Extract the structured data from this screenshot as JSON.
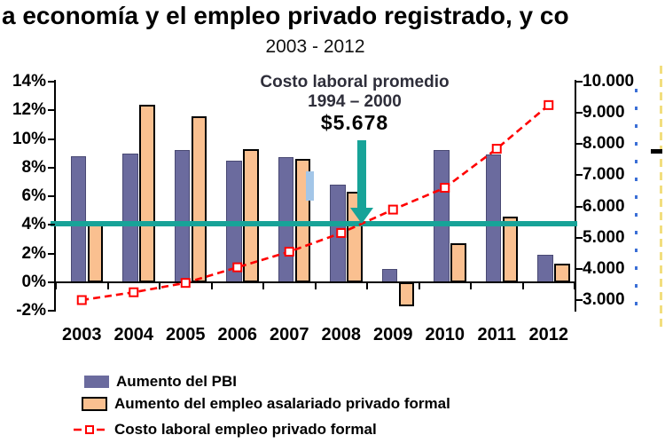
{
  "title": "a economía y el empleo privado registrado, y co",
  "subtitle": "2003 - 2012",
  "annotation": {
    "line1": "Costo laboral promedio",
    "line2": "1994 – 2000",
    "value": "$5.678"
  },
  "colors": {
    "pbi_bar": "#6B6B9E",
    "empleo_bar": "#FAC090",
    "bar_border": "#000000",
    "cost_line": "#FF0000",
    "reference_line": "#17A398",
    "ghost_bar": "#A3C6E8",
    "axis": "#000000",
    "artifact_blue": "#3B6FD6",
    "artifact_yellow": "#F2DE7E"
  },
  "chart_data": {
    "type": "combo-bar-line",
    "title": "a economía y el empleo privado registrado, y co",
    "subtitle": "2003 - 2012",
    "categories": [
      "2003",
      "2004",
      "2005",
      "2006",
      "2007",
      "2008",
      "2009",
      "2010",
      "2011",
      "2012"
    ],
    "series": [
      {
        "name": "Aumento del PBI",
        "type": "bar",
        "axis": "left",
        "color": "#6B6B9E",
        "values": [
          8.8,
          9.0,
          9.2,
          8.5,
          8.7,
          6.8,
          0.9,
          9.2,
          8.9,
          1.9
        ]
      },
      {
        "name": "Aumento del empleo asalariado privado formal",
        "type": "bar",
        "axis": "left",
        "color": "#FAC090",
        "values": [
          4.3,
          12.4,
          11.6,
          9.3,
          8.6,
          6.3,
          -1.7,
          2.7,
          4.6,
          1.3
        ]
      },
      {
        "name": "Costo laboral empleo privado formal",
        "type": "line",
        "axis": "right",
        "color": "#FF0000",
        "marker": "open-square",
        "dashed": true,
        "values": [
          3000,
          3250,
          3550,
          4050,
          4550,
          5150,
          5900,
          6600,
          7850,
          9250
        ]
      }
    ],
    "left_axis": {
      "unit": "%",
      "min": -2,
      "max": 14,
      "step": 2,
      "tick_labels": [
        "14%",
        "12%",
        "10%",
        "8%",
        "6%",
        "4%",
        "2%",
        "0%",
        "-2%"
      ]
    },
    "right_axis": {
      "min": 3000,
      "max": 10000,
      "step": 1000,
      "tick_labels": [
        "10.000",
        "9.000",
        "8.000",
        "7.000",
        "6.000",
        "5.000",
        "4.000",
        "3.000"
      ]
    },
    "reference_line": {
      "value": 5678,
      "label": "$5.678",
      "color": "#17A398"
    },
    "grid": false,
    "legend_position": "bottom-left"
  }
}
